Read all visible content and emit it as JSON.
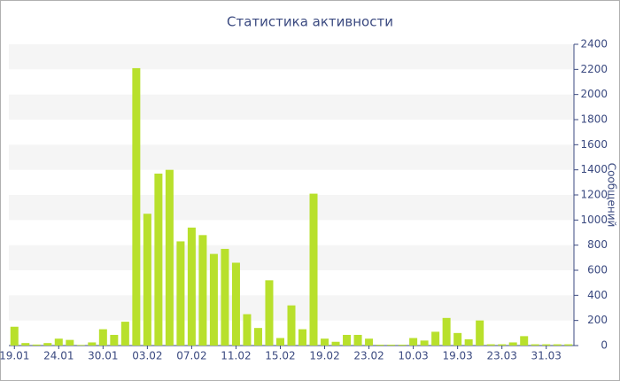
{
  "chart_data": {
    "type": "bar",
    "title": "Статистика активности",
    "y_axis_label": "Сообщений",
    "categories": [
      "19.01",
      null,
      null,
      null,
      "24.01",
      null,
      null,
      null,
      "30.01",
      null,
      null,
      null,
      "03.02",
      null,
      null,
      null,
      "07.02",
      null,
      null,
      null,
      "11.02",
      null,
      null,
      null,
      "15.02",
      null,
      null,
      null,
      "19.02",
      null,
      null,
      null,
      "23.02",
      null,
      null,
      null,
      "10.03",
      null,
      null,
      null,
      "19.03",
      null,
      null,
      null,
      "23.03",
      null,
      null,
      null,
      "31.03",
      null,
      null
    ],
    "values": [
      150,
      20,
      8,
      20,
      55,
      45,
      5,
      25,
      130,
      85,
      190,
      2210,
      1050,
      1370,
      1400,
      830,
      940,
      880,
      730,
      770,
      660,
      250,
      140,
      520,
      60,
      320,
      130,
      1210,
      55,
      30,
      85,
      85,
      55,
      7,
      7,
      7,
      60,
      40,
      110,
      220,
      100,
      50,
      200,
      10,
      10,
      25,
      75,
      10,
      10,
      10,
      10
    ],
    "color": "#b8e02c",
    "ylim": [
      0,
      2400
    ],
    "yticks": [
      0,
      200,
      400,
      600,
      800,
      1000,
      1200,
      1400,
      1600,
      1800,
      2000,
      2200,
      2400
    ],
    "grid": "bands",
    "y_axis_side": "right"
  }
}
